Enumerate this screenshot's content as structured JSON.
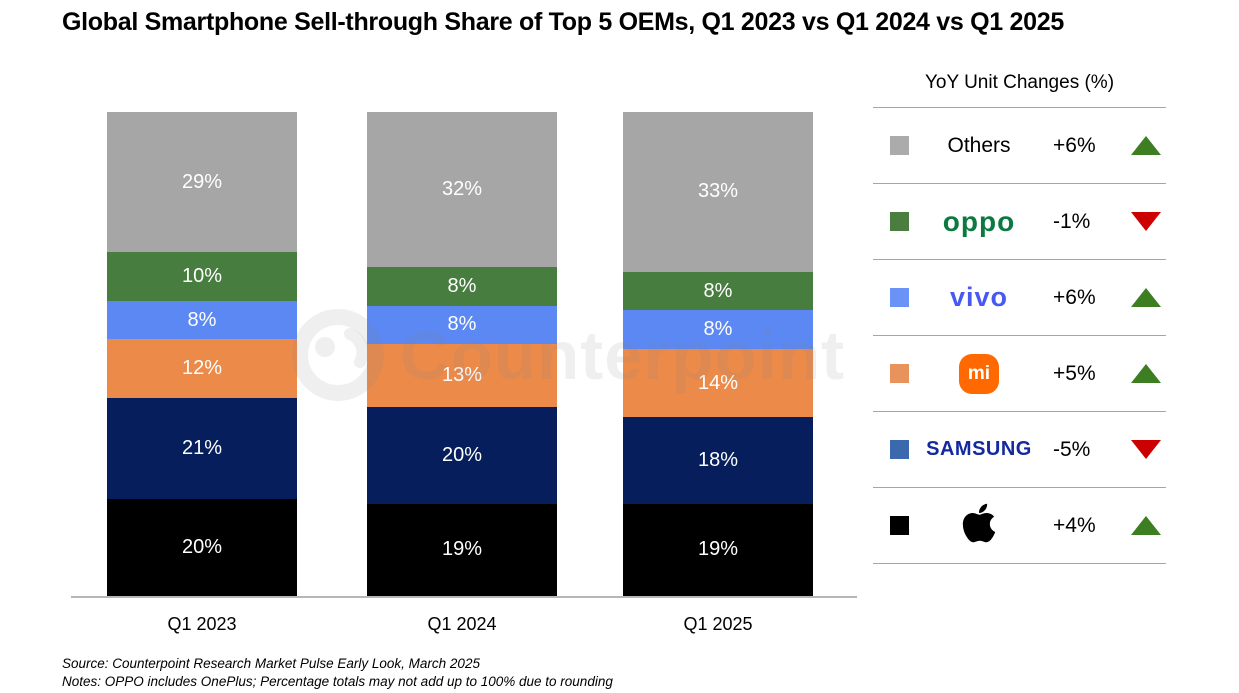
{
  "title": "Global Smartphone Sell-through Share of Top 5 OEMs, Q1 2023 vs Q1 2024 vs Q1 2025",
  "watermark": {
    "text": "Counterpoint"
  },
  "chart_data": {
    "type": "bar",
    "subtype": "stacked-100",
    "categories": [
      "Q1 2023",
      "Q1 2024",
      "Q1 2025"
    ],
    "value_suffix": "%",
    "ylim": [
      0,
      100
    ],
    "series": [
      {
        "name": "Apple",
        "color": "#000000",
        "values": [
          20,
          19,
          19
        ]
      },
      {
        "name": "Samsung",
        "color": "#061f5c",
        "values": [
          21,
          20,
          18
        ]
      },
      {
        "name": "Xiaomi",
        "color": "#ec8a4a",
        "values": [
          12,
          13,
          14
        ]
      },
      {
        "name": "vivo",
        "color": "#5b88f2",
        "values": [
          8,
          8,
          8
        ]
      },
      {
        "name": "OPPO",
        "color": "#477d3e",
        "values": [
          10,
          8,
          8
        ]
      },
      {
        "name": "Others",
        "color": "#a6a6a6",
        "values": [
          29,
          32,
          33
        ]
      }
    ]
  },
  "legend": {
    "title": "YoY Unit Changes (%)",
    "colors": {
      "up": "#3c7e21",
      "down": "#cc0000"
    },
    "rows": [
      {
        "brand": "Others",
        "display": "text",
        "logo_text": "Others",
        "swatch": "#ababab",
        "change": "+6%",
        "direction": "up"
      },
      {
        "brand": "OPPO",
        "display": "oppo",
        "logo_text": "oppo",
        "swatch": "#4a7d3e",
        "change": "-1%",
        "direction": "down"
      },
      {
        "brand": "vivo",
        "display": "vivo",
        "logo_text": "vivo",
        "swatch": "#6b93f7",
        "change": "+6%",
        "direction": "up"
      },
      {
        "brand": "Xiaomi",
        "display": "mi",
        "logo_text": "mi",
        "swatch": "#e9935c",
        "change": "+5%",
        "direction": "up"
      },
      {
        "brand": "Samsung",
        "display": "samsung",
        "logo_text": "SAMSUNG",
        "swatch": "#3b69ae",
        "change": "-5%",
        "direction": "down"
      },
      {
        "brand": "Apple",
        "display": "apple",
        "logo_text": "",
        "swatch": "#000000",
        "change": "+4%",
        "direction": "up"
      }
    ]
  },
  "footer": {
    "source": "Source: Counterpoint Research Market Pulse Early Look, March 2025",
    "notes": "Notes: OPPO includes OnePlus; Percentage totals may not add up to 100% due to rounding"
  }
}
